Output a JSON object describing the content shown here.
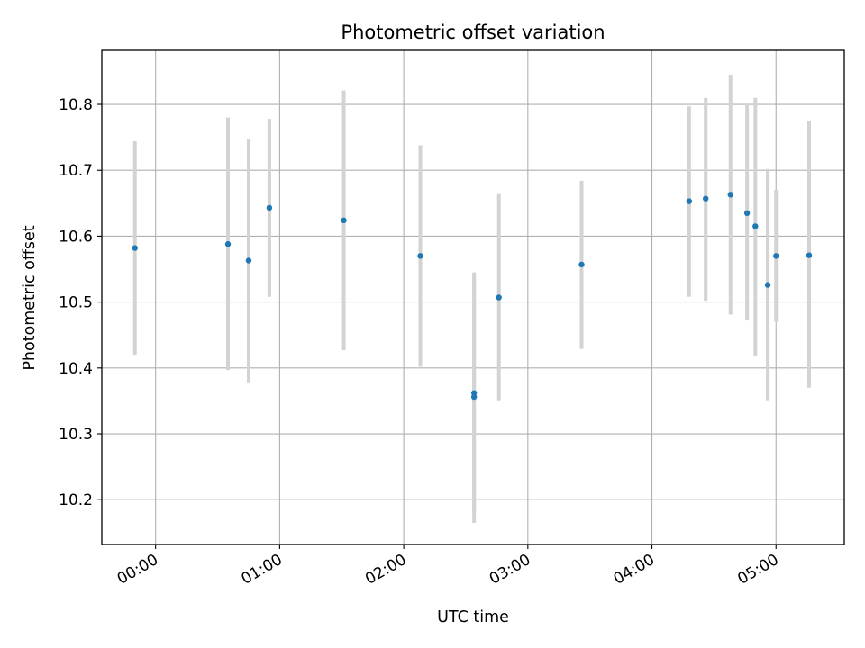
{
  "chart_data": {
    "type": "scatter",
    "title": "Photometric offset variation",
    "xlabel": "UTC time",
    "ylabel": "Photometric offset",
    "xlim": [
      "23:34",
      "05:33"
    ],
    "ylim": [
      10.132,
      10.882
    ],
    "grid": true,
    "x_ticks": [
      "00:00",
      "01:00",
      "02:00",
      "03:00",
      "04:00",
      "05:00"
    ],
    "y_ticks": [
      "10.2",
      "10.3",
      "10.4",
      "10.5",
      "10.6",
      "10.7",
      "10.8"
    ],
    "series": [
      {
        "marker_color": "#1f77b4",
        "errorbar_color": "#d3d3d3",
        "points": [
          {
            "x": "23:50",
            "y": 10.582,
            "ylow": 10.42,
            "yhigh": 10.744
          },
          {
            "x": "00:35",
            "y": 10.588,
            "ylow": 10.397,
            "yhigh": 10.78
          },
          {
            "x": "00:45",
            "y": 10.563,
            "ylow": 10.378,
            "yhigh": 10.748
          },
          {
            "x": "00:55",
            "y": 10.643,
            "ylow": 10.508,
            "yhigh": 10.778
          },
          {
            "x": "01:31",
            "y": 10.624,
            "ylow": 10.427,
            "yhigh": 10.821
          },
          {
            "x": "02:08",
            "y": 10.57,
            "ylow": 10.402,
            "yhigh": 10.738
          },
          {
            "x": "02:34",
            "y": 10.362,
            "ylow": 10.182,
            "yhigh": 10.545
          },
          {
            "x": "02:34",
            "y": 10.356,
            "ylow": 10.165,
            "yhigh": 10.541
          },
          {
            "x": "02:46",
            "y": 10.507,
            "ylow": 10.351,
            "yhigh": 10.664
          },
          {
            "x": "03:26",
            "y": 10.557,
            "ylow": 10.429,
            "yhigh": 10.684
          },
          {
            "x": "04:18",
            "y": 10.653,
            "ylow": 10.508,
            "yhigh": 10.797
          },
          {
            "x": "04:26",
            "y": 10.657,
            "ylow": 10.502,
            "yhigh": 10.81
          },
          {
            "x": "04:38",
            "y": 10.663,
            "ylow": 10.481,
            "yhigh": 10.845
          },
          {
            "x": "04:46",
            "y": 10.635,
            "ylow": 10.472,
            "yhigh": 10.8
          },
          {
            "x": "04:50",
            "y": 10.615,
            "ylow": 10.418,
            "yhigh": 10.81
          },
          {
            "x": "04:56",
            "y": 10.526,
            "ylow": 10.351,
            "yhigh": 10.702
          },
          {
            "x": "05:00",
            "y": 10.57,
            "ylow": 10.47,
            "yhigh": 10.67
          },
          {
            "x": "05:16",
            "y": 10.571,
            "ylow": 10.37,
            "yhigh": 10.774
          }
        ]
      }
    ]
  }
}
